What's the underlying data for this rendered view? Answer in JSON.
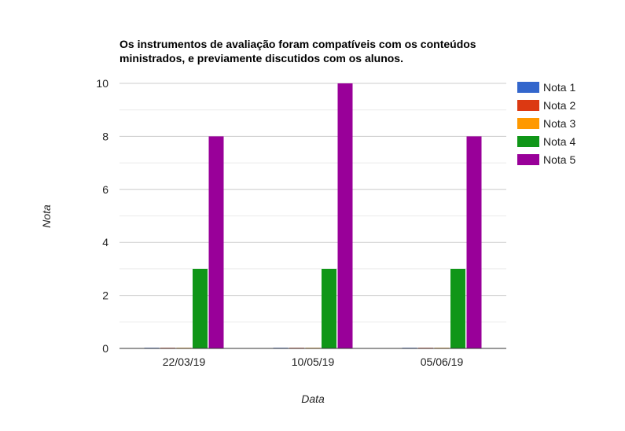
{
  "chart_data": {
    "type": "bar",
    "title_lines": [
      "Os instrumentos de avaliação foram compatíveis com os conteúdos",
      "ministrados, e previamente discutidos com os alunos."
    ],
    "xlabel": "Data",
    "ylabel": "Nota",
    "categories": [
      "22/03/19",
      "10/05/19",
      "05/06/19"
    ],
    "ylim": [
      0,
      10
    ],
    "yticks": [
      "0",
      "2",
      "4",
      "6",
      "8",
      "10"
    ],
    "grid": true,
    "legend_position": "right",
    "series": [
      {
        "name": "Nota 1",
        "color": "#3366cc",
        "values": [
          0,
          0,
          0
        ]
      },
      {
        "name": "Nota 2",
        "color": "#dc3912",
        "values": [
          0,
          0,
          0
        ]
      },
      {
        "name": "Nota 3",
        "color": "#ff9900",
        "values": [
          0,
          0,
          0
        ]
      },
      {
        "name": "Nota 4",
        "color": "#109618",
        "values": [
          3,
          3,
          3
        ]
      },
      {
        "name": "Nota 5",
        "color": "#990099",
        "values": [
          8,
          10,
          8
        ]
      }
    ]
  }
}
